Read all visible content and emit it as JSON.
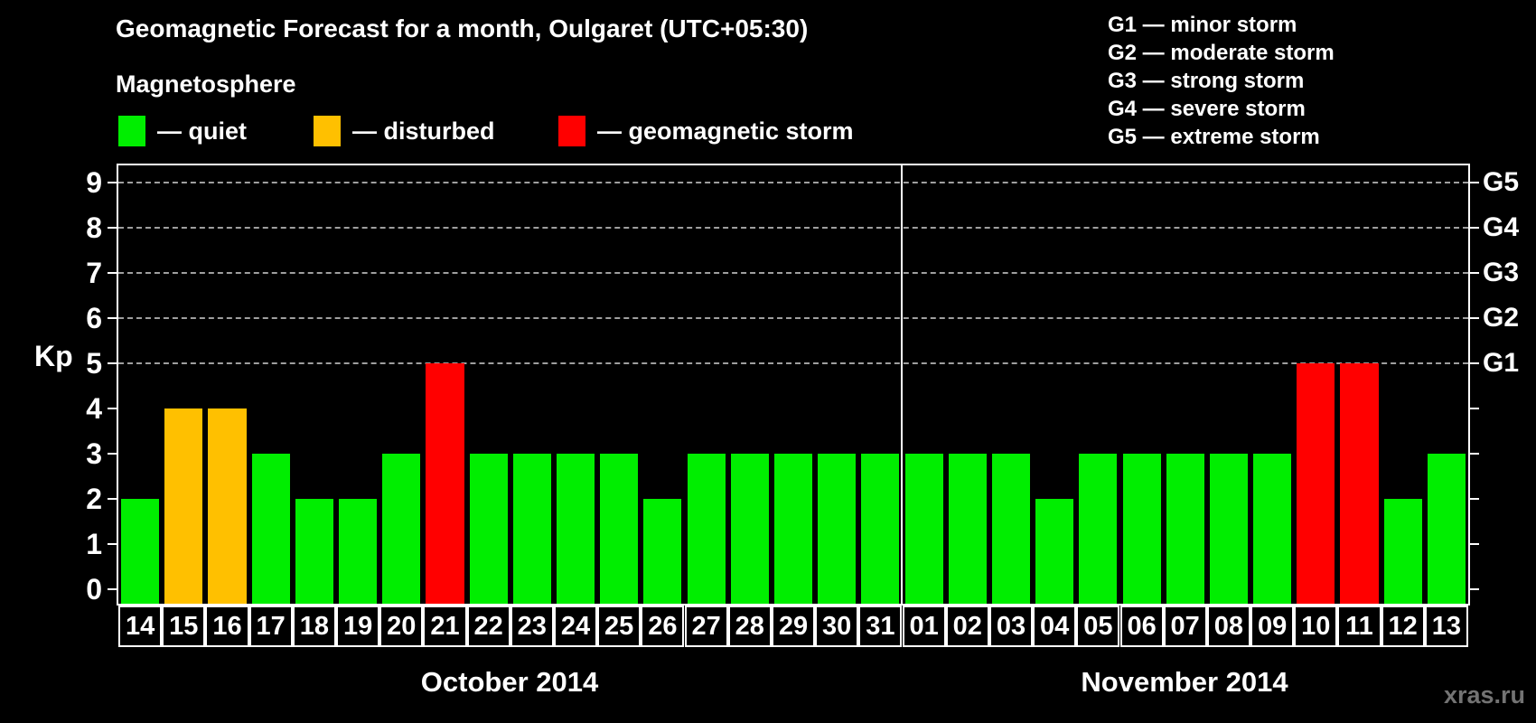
{
  "header": {
    "title": "Geomagnetic Forecast for a month, Oulgaret (UTC+05:30)",
    "subtitle": "Magnetosphere",
    "legend": [
      {
        "key": "quiet",
        "label": "— quiet",
        "color": "#00ee00"
      },
      {
        "key": "disturbed",
        "label": "— disturbed",
        "color": "#ffc000"
      },
      {
        "key": "storm",
        "label": "— geomagnetic storm",
        "color": "#ff0000"
      }
    ],
    "storm_scale_legend": [
      "G1 — minor storm",
      "G2 — moderate storm",
      "G3 — strong storm",
      "G4 — severe storm",
      "G5 — extreme storm"
    ]
  },
  "watermark": "xras.ru",
  "chart_data": {
    "type": "bar",
    "title": "Geomagnetic Forecast for a month, Oulgaret (UTC+05:30)",
    "ylabel": "Kp",
    "ylim": [
      0,
      9
    ],
    "yticks": [
      0,
      1,
      2,
      3,
      4,
      5,
      6,
      7,
      8,
      9
    ],
    "gridlines_at": [
      5,
      6,
      7,
      8,
      9
    ],
    "grid_style": "dashed",
    "right_axis_labels": [
      {
        "kp": 5,
        "label": "G1"
      },
      {
        "kp": 6,
        "label": "G2"
      },
      {
        "kp": 7,
        "label": "G3"
      },
      {
        "kp": 8,
        "label": "G4"
      },
      {
        "kp": 9,
        "label": "G5"
      }
    ],
    "months": [
      {
        "label": "October 2014",
        "days": 18
      },
      {
        "label": "November 2014",
        "days": 13
      }
    ],
    "categories": [
      "14",
      "15",
      "16",
      "17",
      "18",
      "19",
      "20",
      "21",
      "22",
      "23",
      "24",
      "25",
      "26",
      "27",
      "28",
      "29",
      "30",
      "31",
      "01",
      "02",
      "03",
      "04",
      "05",
      "06",
      "07",
      "08",
      "09",
      "10",
      "11",
      "12",
      "13"
    ],
    "series": [
      {
        "name": "Kp forecast",
        "values": [
          2,
          4,
          4,
          3,
          2,
          2,
          3,
          5,
          3,
          3,
          3,
          3,
          2,
          3,
          3,
          3,
          3,
          3,
          3,
          3,
          3,
          2,
          3,
          3,
          3,
          3,
          3,
          5,
          5,
          2,
          3
        ]
      }
    ],
    "statuses": [
      "quiet",
      "disturbed",
      "disturbed",
      "quiet",
      "quiet",
      "quiet",
      "quiet",
      "storm",
      "quiet",
      "quiet",
      "quiet",
      "quiet",
      "quiet",
      "quiet",
      "quiet",
      "quiet",
      "quiet",
      "quiet",
      "quiet",
      "quiet",
      "quiet",
      "quiet",
      "quiet",
      "quiet",
      "quiet",
      "quiet",
      "quiet",
      "storm",
      "storm",
      "quiet",
      "quiet"
    ],
    "colors": {
      "quiet": "#00ee00",
      "disturbed": "#ffc000",
      "storm": "#ff0000"
    },
    "legend_position": "top"
  }
}
